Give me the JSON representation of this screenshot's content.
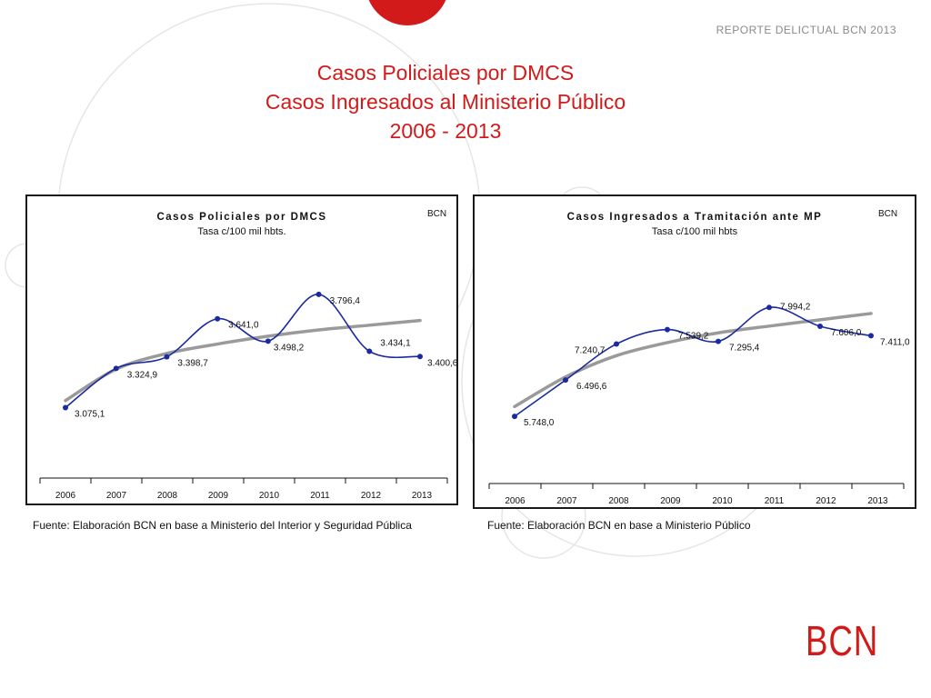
{
  "header": {
    "report_tag": "REPORTE DELICTUAL BCN 2013",
    "title_line1": "Casos Policiales por DMCS",
    "title_line2": "Casos Ingresados al Ministerio Público",
    "title_line3": "2006 - 2013"
  },
  "colors": {
    "accent_red": "#d21a1a",
    "series_blue": "#1a2aa0",
    "trend_gray": "#9a9a9a"
  },
  "chart_data": [
    {
      "type": "line",
      "title": "Casos Policiales por DMCS",
      "subtitle": "Tasa c/100 mil hbts.",
      "corner_label": "BCN",
      "categories": [
        "2006",
        "2007",
        "2008",
        "2009",
        "2010",
        "2011",
        "2012",
        "2013"
      ],
      "series": [
        {
          "values": [
            3075.1,
            3324.9,
            3398.7,
            3641.0,
            3498.2,
            3796.4,
            3434.1,
            3400.6
          ],
          "labels": [
            "3.075,1",
            "3.324,9",
            "3.398,7",
            "3.641,0",
            "3.498,2",
            "3.796,4",
            "3.434,1",
            "3.400,6"
          ]
        }
      ],
      "trend": [
        3120,
        3320,
        3420,
        3480,
        3530,
        3570,
        3600,
        3630
      ],
      "ylim": [
        2800,
        3900
      ],
      "grid": false
    },
    {
      "type": "line",
      "title": "Casos Ingresados a Tramitación ante MP",
      "subtitle": "Tasa c/100 mil hbts",
      "corner_label": "BCN",
      "categories": [
        "2006",
        "2007",
        "2008",
        "2009",
        "2010",
        "2011",
        "2012",
        "2013"
      ],
      "series": [
        {
          "values": [
            5748.0,
            6496.6,
            7240.7,
            7539.2,
            7295.4,
            7994.2,
            7606.0,
            7411.0
          ],
          "labels": [
            "5.748,0",
            "6.496,6",
            "7.240,7",
            "7.539,2",
            "7.295,4",
            "7.994,2",
            "7.606,0",
            "7.411,0"
          ]
        }
      ],
      "trend": [
        5950,
        6560,
        7000,
        7270,
        7470,
        7610,
        7740,
        7870
      ],
      "ylim": [
        4700,
        8600
      ],
      "grid": false
    }
  ],
  "footer": {
    "source_left": "Fuente: Elaboración BCN en base a Ministerio del Interior y Seguridad Pública",
    "source_right": "Fuente: Elaboración BCN en base a Ministerio Público",
    "logo_text": "BCN"
  }
}
